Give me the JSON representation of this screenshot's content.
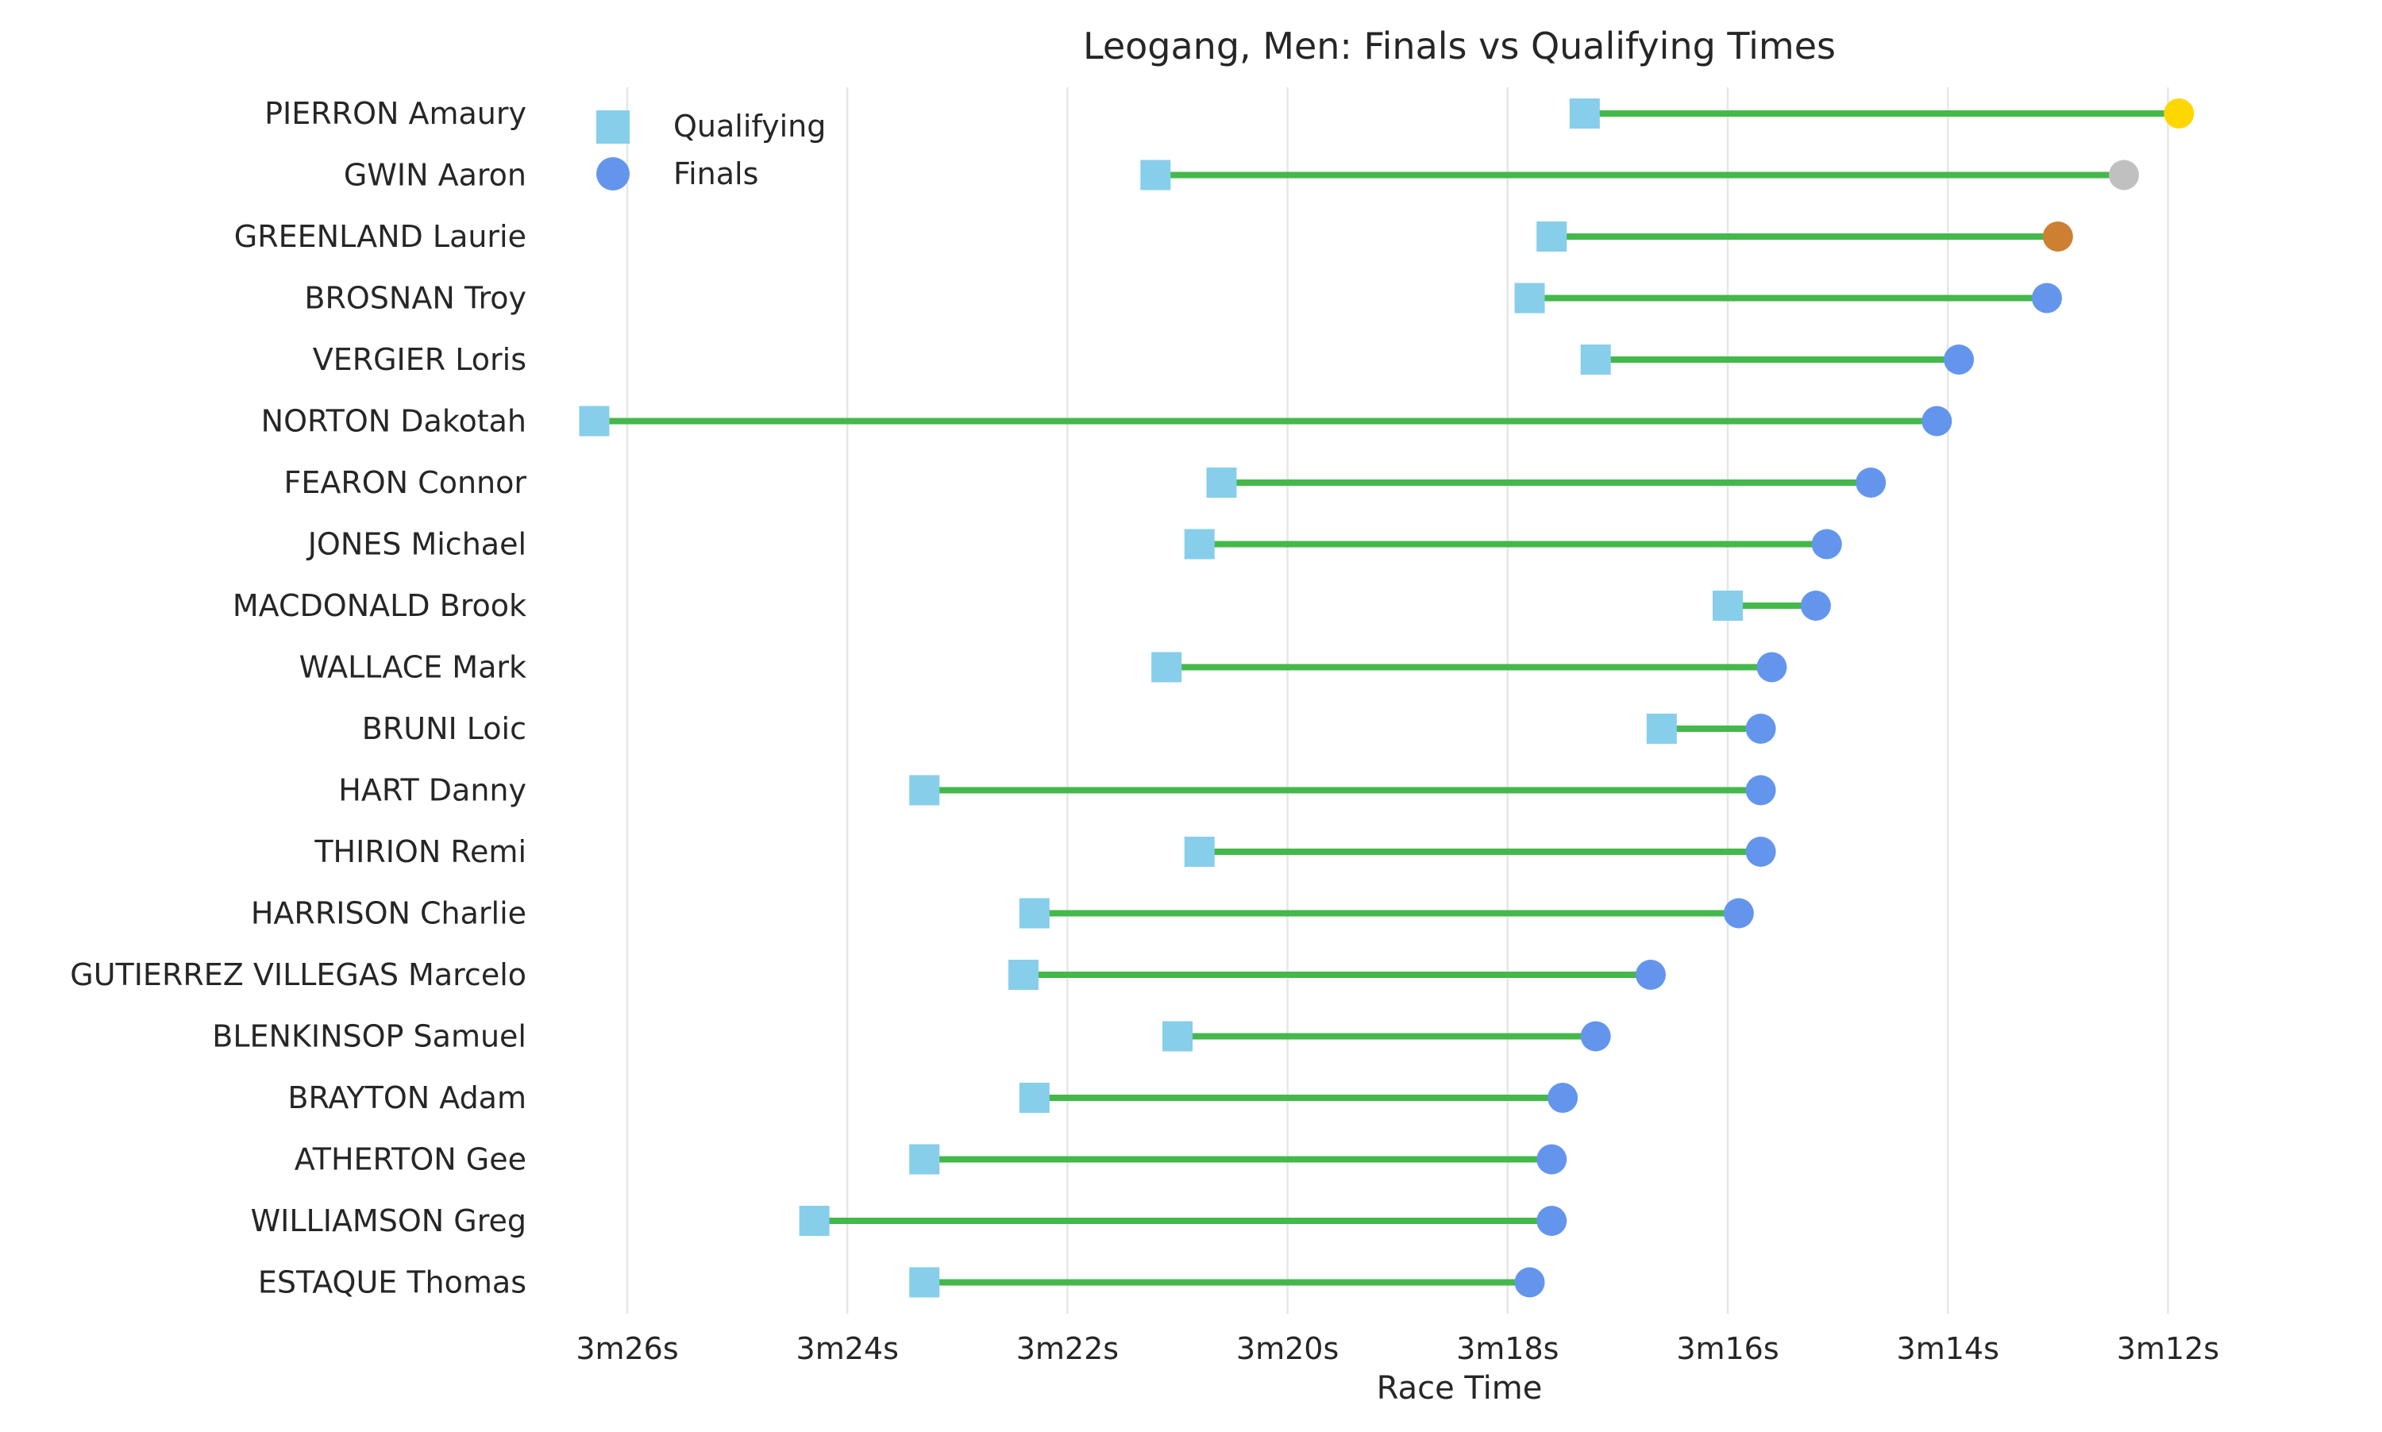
{
  "chart_data": {
    "type": "dumbbell",
    "title": "Leogang, Men: Finals vs Qualifying Times",
    "xlabel": "Race Time",
    "ylabel": "",
    "x_axis": {
      "reversed": true,
      "unit": "seconds",
      "range_seconds": [
        191.0,
        206.3
      ],
      "ticks": [
        {
          "value": 206,
          "label": "3m26s"
        },
        {
          "value": 204,
          "label": "3m24s"
        },
        {
          "value": 202,
          "label": "3m22s"
        },
        {
          "value": 200,
          "label": "3m20s"
        },
        {
          "value": 198,
          "label": "3m18s"
        },
        {
          "value": 196,
          "label": "3m16s"
        },
        {
          "value": 194,
          "label": "3m14s"
        },
        {
          "value": 192,
          "label": "3m12s"
        }
      ]
    },
    "grid": "vertical",
    "legend": {
      "position": "top-left",
      "entries": [
        {
          "label": "Qualifying",
          "marker": "square",
          "color": "#87ceeb"
        },
        {
          "label": "Finals",
          "marker": "circle",
          "color": "#6495ed"
        }
      ]
    },
    "colors": {
      "qualifying": "#87ceeb",
      "finals": "#6495ed",
      "connector": "#44b84a",
      "gold": "#ffd700",
      "silver": "#c0c0c0",
      "bronze": "#cd7f32",
      "grid": "#e6e6e6"
    },
    "series": [
      {
        "name": "Qualifying",
        "values_seconds": [
          197.3,
          201.2,
          197.6,
          197.8,
          197.2,
          206.3,
          200.6,
          200.8,
          196.0,
          201.1,
          196.6,
          203.3,
          200.8,
          202.3,
          202.4,
          201.0,
          202.3,
          203.3,
          204.3,
          203.3
        ]
      },
      {
        "name": "Finals",
        "values_seconds": [
          191.9,
          192.4,
          193.0,
          193.1,
          193.9,
          194.1,
          194.7,
          195.1,
          195.2,
          195.6,
          195.7,
          195.7,
          195.7,
          195.9,
          196.7,
          197.2,
          197.5,
          197.6,
          197.6,
          197.8
        ]
      }
    ],
    "riders": [
      {
        "name": "PIERRON Amaury",
        "qualifying": 197.3,
        "finals": 191.9,
        "medal": "gold"
      },
      {
        "name": "GWIN Aaron",
        "qualifying": 201.2,
        "finals": 192.4,
        "medal": "silver"
      },
      {
        "name": "GREENLAND Laurie",
        "qualifying": 197.6,
        "finals": 193.0,
        "medal": "bronze"
      },
      {
        "name": "BROSNAN Troy",
        "qualifying": 197.8,
        "finals": 193.1,
        "medal": ""
      },
      {
        "name": "VERGIER Loris",
        "qualifying": 197.2,
        "finals": 193.9,
        "medal": ""
      },
      {
        "name": "NORTON Dakotah",
        "qualifying": 206.3,
        "finals": 194.1,
        "medal": ""
      },
      {
        "name": "FEARON Connor",
        "qualifying": 200.6,
        "finals": 194.7,
        "medal": ""
      },
      {
        "name": "JONES Michael",
        "qualifying": 200.8,
        "finals": 195.1,
        "medal": ""
      },
      {
        "name": "MACDONALD Brook",
        "qualifying": 196.0,
        "finals": 195.2,
        "medal": ""
      },
      {
        "name": "WALLACE Mark",
        "qualifying": 201.1,
        "finals": 195.6,
        "medal": ""
      },
      {
        "name": "BRUNI Loic",
        "qualifying": 196.6,
        "finals": 195.7,
        "medal": ""
      },
      {
        "name": "HART Danny",
        "qualifying": 203.3,
        "finals": 195.7,
        "medal": ""
      },
      {
        "name": "THIRION Remi",
        "qualifying": 200.8,
        "finals": 195.7,
        "medal": ""
      },
      {
        "name": "HARRISON Charlie",
        "qualifying": 202.3,
        "finals": 195.9,
        "medal": ""
      },
      {
        "name": "GUTIERREZ VILLEGAS Marcelo",
        "qualifying": 202.4,
        "finals": 196.7,
        "medal": ""
      },
      {
        "name": "BLENKINSOP Samuel",
        "qualifying": 201.0,
        "finals": 197.2,
        "medal": ""
      },
      {
        "name": "BRAYTON Adam",
        "qualifying": 202.3,
        "finals": 197.5,
        "medal": ""
      },
      {
        "name": "ATHERTON Gee",
        "qualifying": 203.3,
        "finals": 197.6,
        "medal": ""
      },
      {
        "name": "WILLIAMSON Greg",
        "qualifying": 204.3,
        "finals": 197.6,
        "medal": ""
      },
      {
        "name": "ESTAQUE Thomas",
        "qualifying": 203.3,
        "finals": 197.8,
        "medal": ""
      }
    ]
  }
}
